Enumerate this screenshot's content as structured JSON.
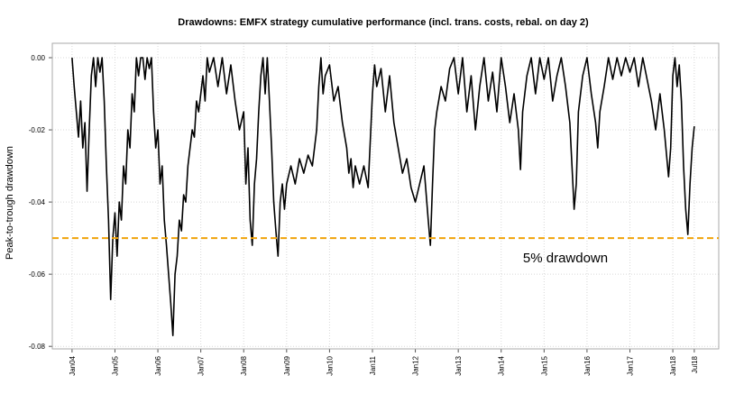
{
  "chart_data": {
    "type": "line",
    "title": "Drawdowns: EMFX strategy cumulative performance (incl. trans. costs, rebal. on day 2)",
    "y_label": "Peak-to-trough drawdown",
    "color": "#000000",
    "grid": true,
    "xlim": [
      2003.54,
      2019.07
    ],
    "ylim": [
      -0.0807,
      0.004
    ],
    "xticks": [
      {
        "value": 2004,
        "label": "Jan04"
      },
      {
        "value": 2005,
        "label": "Jan05"
      },
      {
        "value": 2006,
        "label": "Jan06"
      },
      {
        "value": 2007,
        "label": "Jan07"
      },
      {
        "value": 2008,
        "label": "Jan08"
      },
      {
        "value": 2009,
        "label": "Jan09"
      },
      {
        "value": 2010,
        "label": "Jan10"
      },
      {
        "value": 2011,
        "label": "Jan11"
      },
      {
        "value": 2012,
        "label": "Jan12"
      },
      {
        "value": 2013,
        "label": "Jan13"
      },
      {
        "value": 2014,
        "label": "Jan14"
      },
      {
        "value": 2015,
        "label": "Jan15"
      },
      {
        "value": 2016,
        "label": "Jan16"
      },
      {
        "value": 2017,
        "label": "Jan17"
      },
      {
        "value": 2018,
        "label": "Jan18"
      },
      {
        "value": 2018.5,
        "label": "Jul18"
      }
    ],
    "yticks": [
      {
        "value": 0,
        "label": "0.00"
      },
      {
        "value": -0.02,
        "label": "-0.02"
      },
      {
        "value": -0.04,
        "label": "-0.04"
      },
      {
        "value": -0.06,
        "label": "-0.06"
      },
      {
        "value": -0.08,
        "label": "-0.08"
      }
    ],
    "reference_line": {
      "value": -0.05,
      "color": "#f0a30a",
      "label": "5% drawdown"
    },
    "x": [
      2004.0,
      2004.05,
      2004.1,
      2004.15,
      2004.2,
      2004.25,
      2004.3,
      2004.35,
      2004.4,
      2004.45,
      2004.5,
      2004.55,
      2004.6,
      2004.65,
      2004.7,
      2004.75,
      2004.8,
      2004.85,
      2004.9,
      2004.95,
      2005.0,
      2005.05,
      2005.1,
      2005.15,
      2005.2,
      2005.25,
      2005.3,
      2005.35,
      2005.4,
      2005.45,
      2005.5,
      2005.55,
      2005.6,
      2005.65,
      2005.7,
      2005.75,
      2005.8,
      2005.85,
      2005.9,
      2005.95,
      2006.0,
      2006.05,
      2006.1,
      2006.15,
      2006.2,
      2006.25,
      2006.3,
      2006.35,
      2006.4,
      2006.45,
      2006.5,
      2006.55,
      2006.6,
      2006.65,
      2006.7,
      2006.75,
      2006.8,
      2006.85,
      2006.9,
      2006.95,
      2007.0,
      2007.05,
      2007.1,
      2007.15,
      2007.2,
      2007.3,
      2007.4,
      2007.5,
      2007.6,
      2007.7,
      2007.8,
      2007.9,
      2008.0,
      2008.05,
      2008.1,
      2008.15,
      2008.2,
      2008.25,
      2008.3,
      2008.35,
      2008.4,
      2008.45,
      2008.5,
      2008.55,
      2008.6,
      2008.65,
      2008.7,
      2008.75,
      2008.8,
      2008.85,
      2008.9,
      2008.95,
      2009.0,
      2009.1,
      2009.2,
      2009.3,
      2009.4,
      2009.5,
      2009.6,
      2009.7,
      2009.75,
      2009.8,
      2009.85,
      2009.9,
      2010.0,
      2010.1,
      2010.2,
      2010.3,
      2010.4,
      2010.45,
      2010.5,
      2010.55,
      2010.6,
      2010.7,
      2010.8,
      2010.9,
      2011.0,
      2011.05,
      2011.1,
      2011.2,
      2011.3,
      2011.4,
      2011.5,
      2011.6,
      2011.7,
      2011.8,
      2011.9,
      2012.0,
      2012.1,
      2012.2,
      2012.3,
      2012.35,
      2012.4,
      2012.45,
      2012.5,
      2012.6,
      2012.7,
      2012.8,
      2012.9,
      2013.0,
      2013.1,
      2013.2,
      2013.3,
      2013.4,
      2013.5,
      2013.6,
      2013.7,
      2013.8,
      2013.9,
      2014.0,
      2014.1,
      2014.2,
      2014.3,
      2014.4,
      2014.45,
      2014.5,
      2014.6,
      2014.7,
      2014.8,
      2014.9,
      2015.0,
      2015.1,
      2015.2,
      2015.3,
      2015.4,
      2015.5,
      2015.6,
      2015.65,
      2015.7,
      2015.75,
      2015.8,
      2015.9,
      2016.0,
      2016.1,
      2016.2,
      2016.25,
      2016.3,
      2016.4,
      2016.5,
      2016.6,
      2016.7,
      2016.8,
      2016.9,
      2017.0,
      2017.1,
      2017.2,
      2017.3,
      2017.4,
      2017.5,
      2017.6,
      2017.7,
      2017.8,
      2017.9,
      2017.95,
      2018.0,
      2018.05,
      2018.1,
      2018.15,
      2018.2,
      2018.25,
      2018.3,
      2018.35,
      2018.4,
      2018.45,
      2018.5
    ],
    "values": [
      0,
      -0.008,
      -0.015,
      -0.022,
      -0.012,
      -0.025,
      -0.018,
      -0.037,
      -0.02,
      -0.005,
      0,
      -0.008,
      0,
      -0.004,
      0,
      -0.012,
      -0.03,
      -0.045,
      -0.067,
      -0.05,
      -0.043,
      -0.055,
      -0.04,
      -0.045,
      -0.03,
      -0.035,
      -0.02,
      -0.025,
      -0.01,
      -0.015,
      0,
      -0.005,
      0,
      0,
      -0.006,
      0,
      -0.003,
      0,
      -0.015,
      -0.025,
      -0.02,
      -0.035,
      -0.03,
      -0.045,
      -0.052,
      -0.06,
      -0.068,
      -0.077,
      -0.06,
      -0.055,
      -0.045,
      -0.048,
      -0.038,
      -0.04,
      -0.03,
      -0.025,
      -0.02,
      -0.022,
      -0.012,
      -0.015,
      -0.01,
      -0.005,
      -0.012,
      0,
      -0.004,
      0,
      -0.008,
      0,
      -0.01,
      -0.002,
      -0.012,
      -0.02,
      -0.015,
      -0.035,
      -0.025,
      -0.045,
      -0.052,
      -0.035,
      -0.028,
      -0.015,
      -0.005,
      0,
      -0.01,
      0,
      -0.012,
      -0.025,
      -0.04,
      -0.048,
      -0.055,
      -0.04,
      -0.035,
      -0.042,
      -0.035,
      -0.03,
      -0.035,
      -0.028,
      -0.032,
      -0.027,
      -0.03,
      -0.02,
      -0.008,
      0,
      -0.01,
      -0.005,
      -0.002,
      -0.012,
      -0.008,
      -0.018,
      -0.025,
      -0.032,
      -0.028,
      -0.036,
      -0.03,
      -0.035,
      -0.03,
      -0.036,
      -0.01,
      -0.002,
      -0.008,
      -0.003,
      -0.015,
      -0.005,
      -0.018,
      -0.025,
      -0.032,
      -0.028,
      -0.036,
      -0.04,
      -0.035,
      -0.03,
      -0.045,
      -0.052,
      -0.035,
      -0.02,
      -0.015,
      -0.008,
      -0.012,
      -0.003,
      0,
      -0.01,
      0,
      -0.015,
      -0.005,
      -0.02,
      -0.008,
      0,
      -0.012,
      -0.004,
      -0.015,
      0,
      -0.008,
      -0.018,
      -0.01,
      -0.02,
      -0.031,
      -0.015,
      -0.005,
      0,
      -0.01,
      0,
      -0.006,
      0,
      -0.012,
      -0.005,
      0,
      -0.008,
      -0.018,
      -0.03,
      -0.042,
      -0.035,
      -0.015,
      -0.005,
      0,
      -0.01,
      -0.018,
      -0.025,
      -0.015,
      -0.008,
      0,
      -0.006,
      0,
      -0.005,
      0,
      -0.004,
      0,
      -0.008,
      0,
      -0.006,
      -0.012,
      -0.02,
      -0.01,
      -0.02,
      -0.033,
      -0.025,
      -0.005,
      0,
      -0.008,
      -0.002,
      -0.012,
      -0.03,
      -0.042,
      -0.049,
      -0.035,
      -0.025,
      -0.019
    ]
  }
}
